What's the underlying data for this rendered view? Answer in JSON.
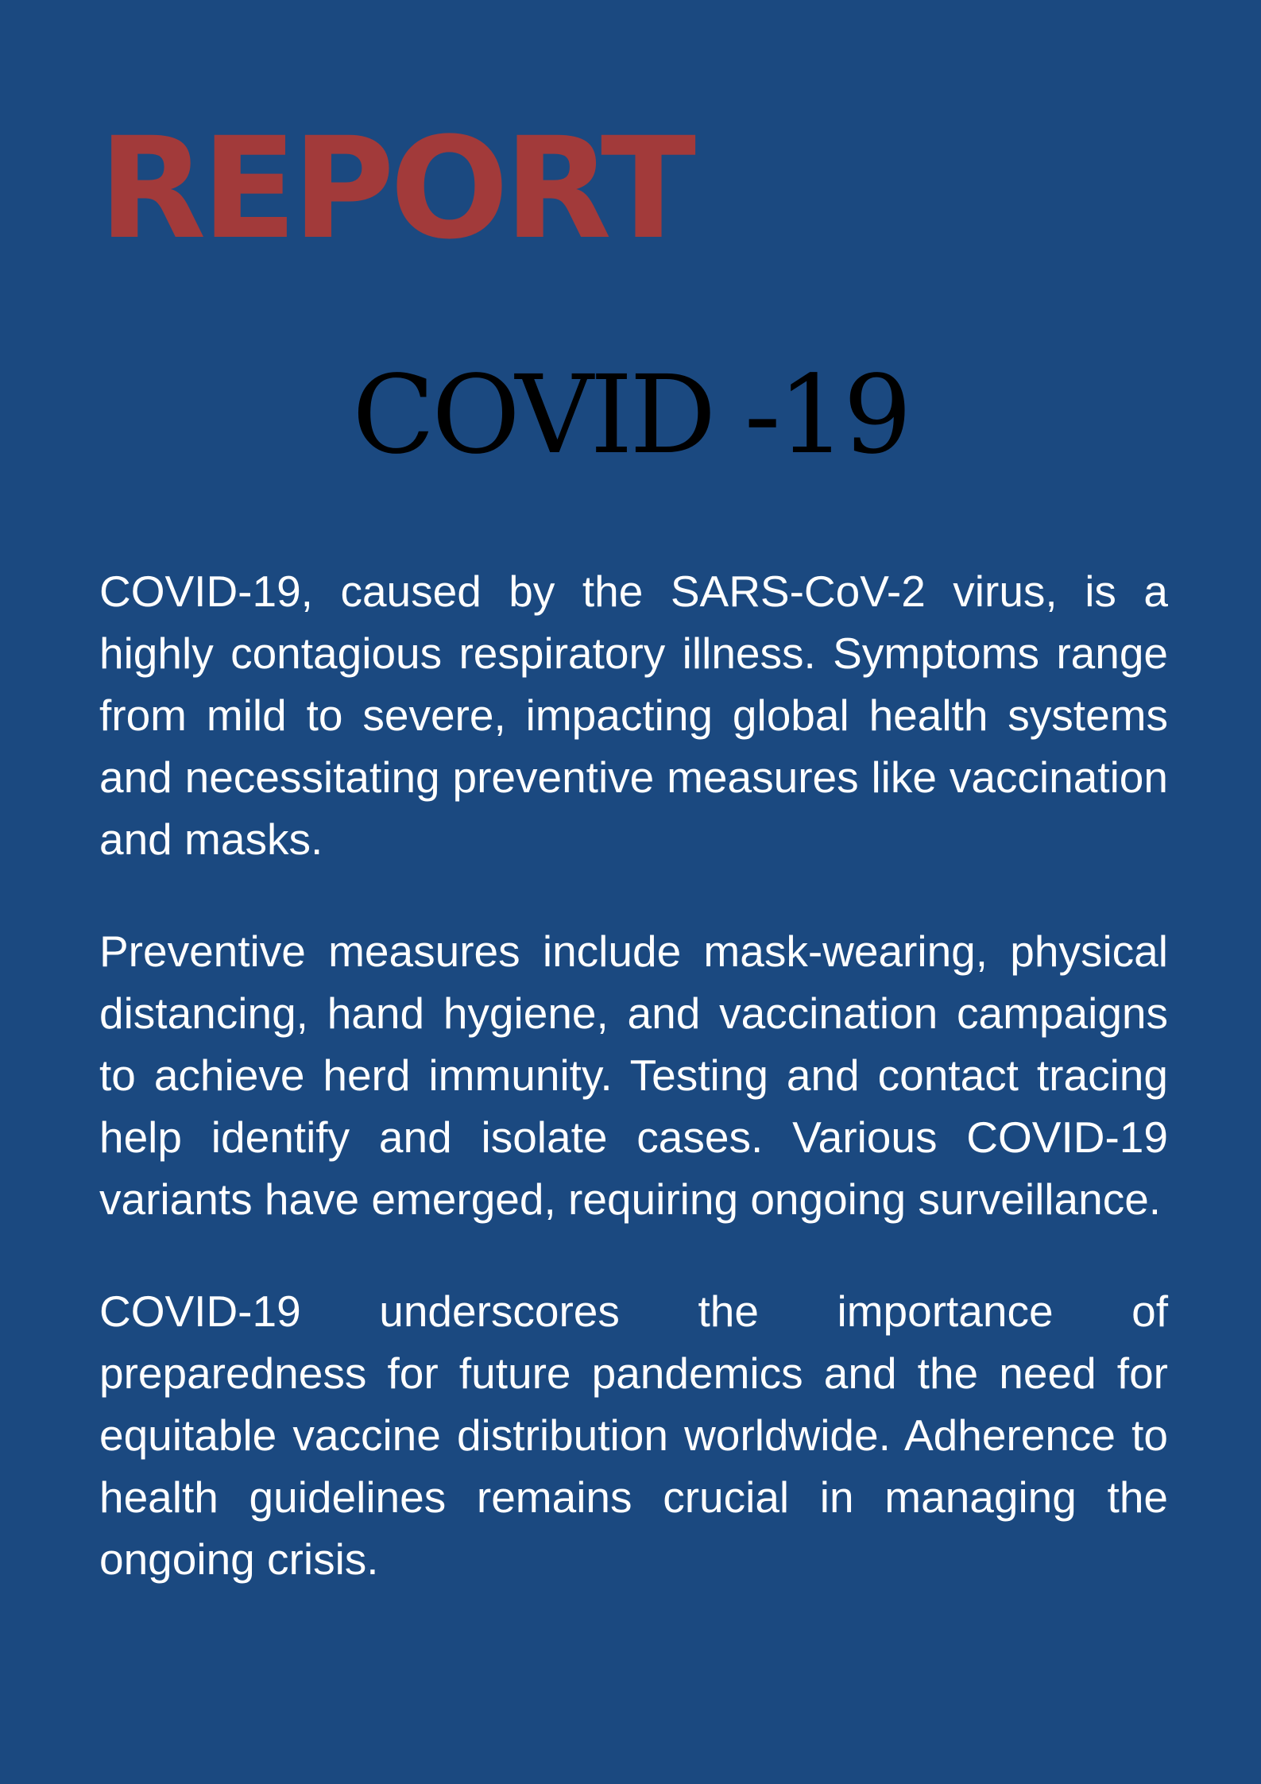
{
  "header": {
    "label": "REPORT",
    "title": "COVID -19"
  },
  "body": {
    "paragraphs": [
      "COVID-19, caused by the SARS-CoV-2 virus, is a highly contagious respiratory illness. Symptoms range from mild to severe, impacting global health systems and necessitating preventive measures like vaccination and masks.",
      "Preventive measures include mask-wearing, physical distancing, hand hygiene, and vaccination campaigns to achieve herd immunity. Testing and contact tracing help identify and isolate cases. Various COVID-19 variants have emerged, requiring ongoing surveillance.",
      "COVID-19 underscores the importance of preparedness for future pandemics and the need for equitable vaccine distribution worldwide. Adherence to health guidelines remains crucial in managing the ongoing crisis."
    ]
  },
  "colors": {
    "background": "#1b4980",
    "accent": "#a23a3a",
    "title": "#000000",
    "body_text": "#ffffff"
  }
}
